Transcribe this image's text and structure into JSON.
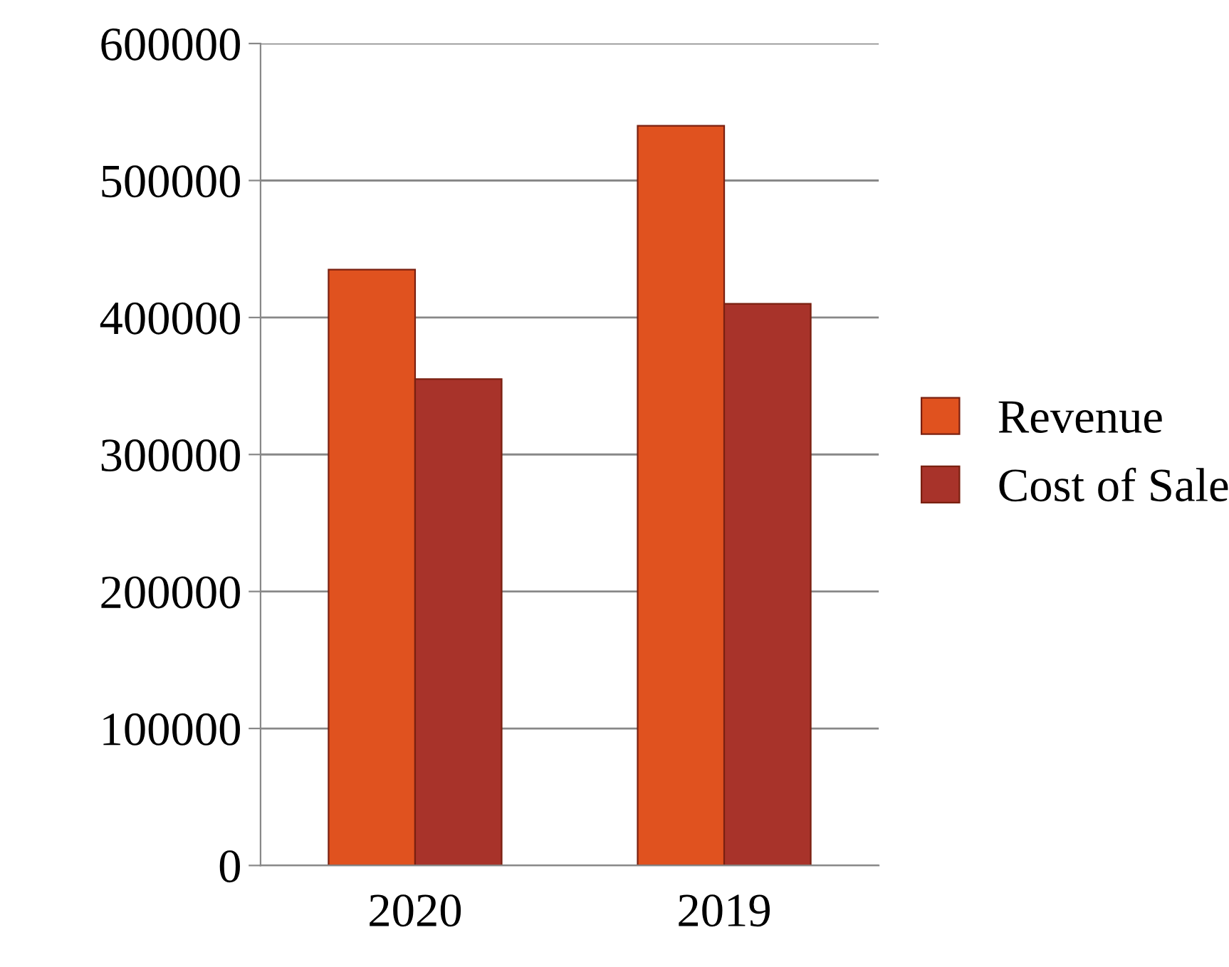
{
  "chart_data": {
    "type": "bar",
    "categories": [
      "2020",
      "2019"
    ],
    "series": [
      {
        "name": "Revenue",
        "color": "#e0521f",
        "values": [
          435000,
          540000
        ]
      },
      {
        "name": "Cost of Sale",
        "color": "#a8332a",
        "values": [
          355000,
          410000
        ]
      }
    ],
    "ylim": [
      0,
      600000
    ],
    "yticks": [
      0,
      100000,
      200000,
      300000,
      400000,
      500000,
      600000
    ],
    "grid": "y",
    "legend": "right"
  }
}
